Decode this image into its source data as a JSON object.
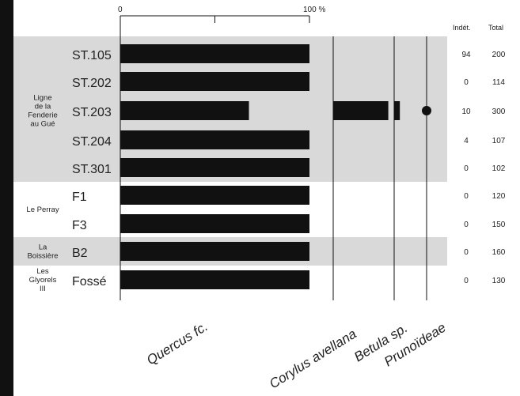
{
  "chart_data": {
    "type": "bar",
    "axis": {
      "min": 0,
      "max": 100,
      "min_label": "0",
      "max_label": "100 %",
      "mid_tick": 50
    },
    "groups": [
      {
        "name": "Ligne\nde la\nFenderie\nau Gué",
        "rows": [
          "ST.105",
          "ST.202",
          "ST.203",
          "ST.204",
          "ST.301"
        ],
        "shaded": true
      },
      {
        "name": "Le Perray",
        "rows": [
          "F1",
          "F3"
        ],
        "shaded": false
      },
      {
        "name": "La\nBoissière",
        "rows": [
          "B2"
        ],
        "shaded": true
      },
      {
        "name": "Les\nGlyorels\nIII",
        "rows": [
          "Fossé"
        ],
        "shaded": false
      }
    ],
    "rows": [
      {
        "label": "ST.105",
        "quercus": 100,
        "corylus": 0,
        "betula": 0,
        "prunoideae": 0,
        "indet": "94",
        "total": "200"
      },
      {
        "label": "ST.202",
        "quercus": 100,
        "corylus": 0,
        "betula": 0,
        "prunoideae": 0,
        "indet": "0",
        "total": "114"
      },
      {
        "label": "ST.203",
        "quercus": 68,
        "corylus": 29,
        "betula": 3,
        "prunoideae": 0.3,
        "indet": "10",
        "total": "300"
      },
      {
        "label": "ST.204",
        "quercus": 100,
        "corylus": 0,
        "betula": 0,
        "prunoideae": 0,
        "indet": "4",
        "total": "107"
      },
      {
        "label": "ST.301",
        "quercus": 100,
        "corylus": 0,
        "betula": 0,
        "prunoideae": 0,
        "indet": "0",
        "total": "102"
      },
      {
        "label": "F1",
        "quercus": 100,
        "corylus": 0,
        "betula": 0,
        "prunoideae": 0,
        "indet": "0",
        "total": "120"
      },
      {
        "label": "F3",
        "quercus": 100,
        "corylus": 0,
        "betula": 0,
        "prunoideae": 0,
        "indet": "0",
        "total": "150"
      },
      {
        "label": "B2",
        "quercus": 100,
        "corylus": 0,
        "betula": 0,
        "prunoideae": 0,
        "indet": "0",
        "total": "160"
      },
      {
        "label": "Fossé",
        "quercus": 100,
        "corylus": 0,
        "betula": 0,
        "prunoideae": 0,
        "indet": "0",
        "total": "130"
      }
    ],
    "taxa": [
      {
        "key": "quercus",
        "label": "Quercus fc."
      },
      {
        "key": "corylus",
        "label": "Corylus avellana"
      },
      {
        "key": "betula",
        "label": "Betula sp."
      },
      {
        "key": "prunoideae",
        "label": "Prunoïdeae"
      }
    ],
    "columns": {
      "indet": "Indét.",
      "total": "Total"
    },
    "colors": {
      "bar": "#111111",
      "band": "#d9d9d9",
      "frame": "#111111",
      "text": "#222222"
    }
  }
}
